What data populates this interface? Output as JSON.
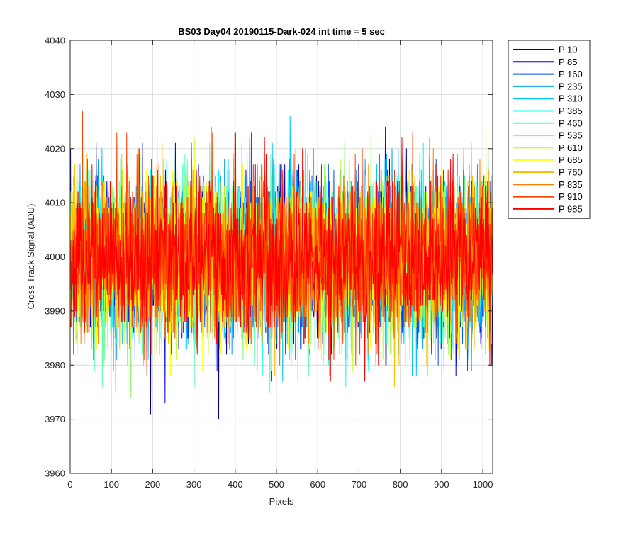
{
  "chart_data": {
    "type": "line",
    "title": "BS03 Day04 20190115-Dark-024 int time = 5 sec",
    "xlabel": "Pixels",
    "ylabel": "Cross Track Signal (ADU)",
    "xlim": [
      0,
      1024
    ],
    "ylim": [
      3960,
      4040
    ],
    "xticks": [
      0,
      100,
      200,
      300,
      400,
      500,
      600,
      700,
      800,
      900,
      1000
    ],
    "yticks": [
      3960,
      3970,
      3980,
      3990,
      4000,
      4010,
      4020,
      4030,
      4040
    ],
    "grid": true,
    "legend_position": "outside-top-right",
    "x_range": [
      1,
      1024
    ],
    "signal_center": 4000,
    "signal_typical_range": [
      3985,
      4017
    ],
    "signal_extremes": [
      3968,
      4032
    ],
    "series": [
      {
        "name": "P 10",
        "color": "#00008f"
      },
      {
        "name": "P 85",
        "color": "#0000ef"
      },
      {
        "name": "P 160",
        "color": "#0050ff"
      },
      {
        "name": "P 235",
        "color": "#00a0ff"
      },
      {
        "name": "P 310",
        "color": "#00c8ff"
      },
      {
        "name": "P 385",
        "color": "#10ffef"
      },
      {
        "name": "P 460",
        "color": "#5fffb0"
      },
      {
        "name": "P 535",
        "color": "#8fff70"
      },
      {
        "name": "P 610",
        "color": "#c8ff30"
      },
      {
        "name": "P 685",
        "color": "#ffff00"
      },
      {
        "name": "P 760",
        "color": "#ffc000"
      },
      {
        "name": "P 835",
        "color": "#ff8000"
      },
      {
        "name": "P 910",
        "color": "#ff4000"
      },
      {
        "name": "P 985",
        "color": "#ff0000"
      }
    ]
  }
}
